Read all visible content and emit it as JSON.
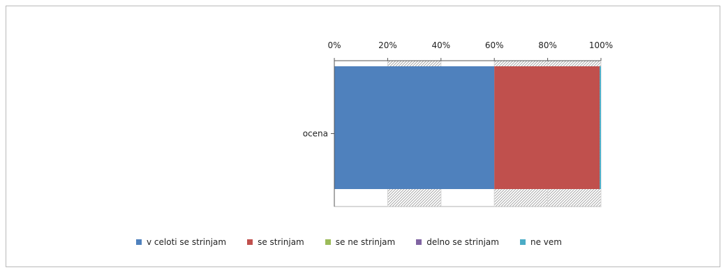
{
  "chart_data": {
    "type": "bar",
    "orientation": "horizontal-stacked-100",
    "categories": [
      "ocena"
    ],
    "series": [
      {
        "name": "v celoti se strinjam",
        "values": [
          60
        ],
        "color": "#4f81bd"
      },
      {
        "name": "se strinjam",
        "values": [
          39.5
        ],
        "color": "#c0504d"
      },
      {
        "name": "se ne strinjam",
        "values": [
          0
        ],
        "color": "#9bbb59"
      },
      {
        "name": "delno se strinjam",
        "values": [
          0
        ],
        "color": "#8064a2"
      },
      {
        "name": "ne vem",
        "values": [
          0.5
        ],
        "color": "#4bacc6"
      }
    ],
    "xlim": [
      0,
      100
    ],
    "xticks": [
      "0%",
      "20%",
      "40%",
      "60%",
      "80%",
      "100%"
    ],
    "x_axis_position": "top",
    "gridlines": true,
    "legend_position": "bottom"
  }
}
